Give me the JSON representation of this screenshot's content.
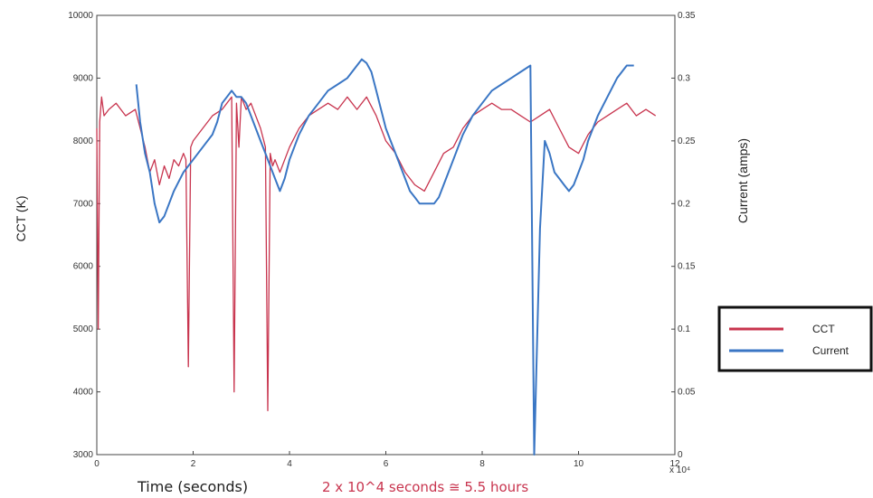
{
  "chart_data": {
    "type": "line",
    "x_label": "Time (seconds)",
    "x_exponent_label": "x 10⁴",
    "x_ticks": [
      "0",
      "2",
      "4",
      "6",
      "8",
      "10",
      "12"
    ],
    "x_tick_values": [
      0,
      20000,
      40000,
      60000,
      80000,
      100000,
      120000
    ],
    "xlim": [
      0,
      120000
    ],
    "y_left_label": "CCT (K)",
    "y_left_ticks": [
      "3000",
      "4000",
      "5000",
      "6000",
      "7000",
      "8000",
      "9000",
      "10000"
    ],
    "y_left_lim": [
      3000,
      10000
    ],
    "y_right_label": "Current (amps)",
    "y_right_ticks": [
      "0",
      "0.05",
      "0.1",
      "0.15",
      "0.2",
      "0.25",
      "0.3",
      "0.35"
    ],
    "y_right_lim": [
      0,
      0.35
    ],
    "annotation": "2 x 10^4 seconds ≅ 5.5 hours",
    "annotation_color": "#c8344e",
    "legend": {
      "placement": "right",
      "items": [
        "CCT",
        "Current"
      ]
    },
    "series": [
      {
        "name": "CCT",
        "axis": "left",
        "color": "#c8344e",
        "x": [
          0,
          300,
          600,
          1000,
          1500,
          2500,
          4000,
          6000,
          8000,
          10000,
          11000,
          12000,
          13000,
          14000,
          15000,
          16000,
          17000,
          18000,
          18500,
          19000,
          19500,
          20000,
          22000,
          24000,
          26000,
          27000,
          28000,
          28500,
          29000,
          29500,
          30000,
          31000,
          32000,
          33000,
          34000,
          35000,
          35500,
          36000,
          36500,
          37000,
          38000,
          39000,
          40000,
          42000,
          44000,
          46000,
          48000,
          50000,
          52000,
          54000,
          56000,
          58000,
          60000,
          62000,
          64000,
          66000,
          68000,
          70000,
          72000,
          74000,
          76000,
          78000,
          80000,
          82000,
          84000,
          86000,
          88000,
          90000,
          92000,
          94000,
          96000,
          98000,
          100000,
          102000,
          104000,
          106000,
          108000,
          110000,
          112000,
          114000,
          116000
        ],
        "y": [
          8200,
          5000,
          8300,
          8700,
          8400,
          8500,
          8600,
          8400,
          8500,
          7900,
          7500,
          7700,
          7300,
          7600,
          7400,
          7700,
          7600,
          7800,
          7700,
          4400,
          7900,
          8000,
          8200,
          8400,
          8500,
          8600,
          8700,
          4000,
          8600,
          7900,
          8700,
          8500,
          8600,
          8400,
          8200,
          7900,
          3700,
          7800,
          7600,
          7700,
          7500,
          7700,
          7900,
          8200,
          8400,
          8500,
          8600,
          8500,
          8700,
          8500,
          8700,
          8400,
          8000,
          7800,
          7500,
          7300,
          7200,
          7500,
          7800,
          7900,
          8200,
          8400,
          8500,
          8600,
          8500,
          8500,
          8400,
          8300,
          8400,
          8500,
          8200,
          7900,
          7800,
          8100,
          8300,
          8400,
          8500,
          8600,
          8400,
          8500,
          8400
        ]
      },
      {
        "name": "Current",
        "axis": "right",
        "color": "#3a76c4",
        "x": [
          8200,
          9000,
          10000,
          11000,
          12000,
          13000,
          14000,
          15000,
          16000,
          18000,
          20000,
          22000,
          24000,
          25000,
          26000,
          27000,
          28000,
          29000,
          30000,
          31000,
          32000,
          33000,
          34000,
          35000,
          36000,
          37000,
          38000,
          39000,
          40000,
          41000,
          42000,
          44000,
          46000,
          48000,
          50000,
          52000,
          54000,
          55000,
          56000,
          57000,
          58000,
          59000,
          60000,
          61000,
          62000,
          63000,
          64000,
          65000,
          66000,
          67000,
          68000,
          69000,
          70000,
          71000,
          72000,
          74000,
          76000,
          78000,
          80000,
          82000,
          84000,
          86000,
          88000,
          90000,
          90800,
          92000,
          93000,
          94000,
          95000,
          96000,
          97000,
          98000,
          99000,
          100000,
          101000,
          102000,
          104000,
          106000,
          108000,
          110000,
          111500
        ],
        "y": [
          0.295,
          0.265,
          0.24,
          0.225,
          0.2,
          0.185,
          0.19,
          0.2,
          0.21,
          0.225,
          0.235,
          0.245,
          0.255,
          0.265,
          0.28,
          0.285,
          0.29,
          0.285,
          0.285,
          0.28,
          0.27,
          0.26,
          0.25,
          0.24,
          0.23,
          0.22,
          0.21,
          0.22,
          0.235,
          0.245,
          0.255,
          0.27,
          0.28,
          0.29,
          0.295,
          0.3,
          0.31,
          0.315,
          0.312,
          0.305,
          0.29,
          0.275,
          0.26,
          0.25,
          0.24,
          0.23,
          0.22,
          0.21,
          0.205,
          0.2,
          0.2,
          0.2,
          0.2,
          0.205,
          0.215,
          0.235,
          0.255,
          0.27,
          0.28,
          0.29,
          0.295,
          0.3,
          0.305,
          0.31,
          0.0,
          0.18,
          0.25,
          0.24,
          0.225,
          0.22,
          0.215,
          0.21,
          0.215,
          0.225,
          0.235,
          0.25,
          0.27,
          0.285,
          0.3,
          0.31,
          0.31
        ]
      }
    ]
  }
}
